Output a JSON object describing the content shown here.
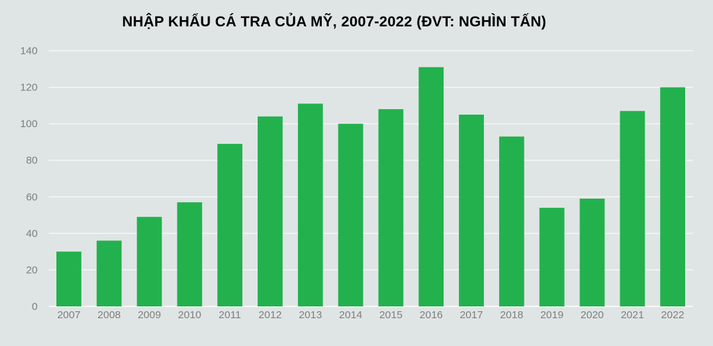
{
  "chart_data": {
    "type": "bar",
    "title": "NHẬP KHẨU CÁ TRA CỦA MỸ, 2007-2022 (ĐVT: NGHÌN TẤN)",
    "xlabel": "",
    "ylabel": "",
    "categories": [
      "2007",
      "2008",
      "2009",
      "2010",
      "2011",
      "2012",
      "2013",
      "2014",
      "2015",
      "2016",
      "2017",
      "2018",
      "2019",
      "2020",
      "2021",
      "2022"
    ],
    "values": [
      30,
      36,
      49,
      57,
      89,
      104,
      111,
      100,
      108,
      131,
      105,
      93,
      54,
      59,
      107,
      120
    ],
    "ylim": [
      0,
      140
    ],
    "yticks": [
      0,
      20,
      40,
      60,
      80,
      100,
      120,
      140
    ],
    "grid": true,
    "legend": "none",
    "colors": {
      "bar": "#23b14d",
      "background": "#dfe5e4",
      "grid": "#ffffff",
      "tick_text": "#7f7f7f"
    }
  }
}
